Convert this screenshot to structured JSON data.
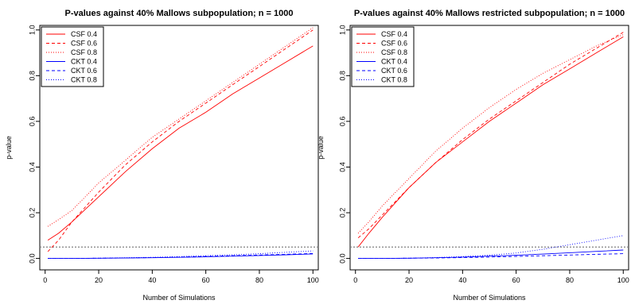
{
  "panels": [
    {
      "title": "P-values against 40% Mallows subpopulation; n = 1000",
      "chart_data": {
        "type": "line",
        "title": "P-values against 40% Mallows subpopulation; n = 1000",
        "xlabel": "Number of Simulations",
        "ylabel": "p-value",
        "xlim": [
          0,
          100
        ],
        "ylim": [
          -0.05,
          1.02
        ],
        "xticks": [
          0,
          20,
          40,
          60,
          80,
          100
        ],
        "yticks": [
          0.0,
          0.2,
          0.4,
          0.6,
          0.8,
          1.0
        ],
        "xtick_labels": [
          "0",
          "20",
          "40",
          "60",
          "80",
          "100"
        ],
        "ytick_labels": [
          "0.0",
          "0.2",
          "0.4",
          "0.6",
          "0.8",
          "1.0"
        ],
        "hline": 0.05,
        "legend_position": "top-left",
        "x": [
          1,
          5,
          10,
          20,
          30,
          40,
          50,
          60,
          70,
          80,
          90,
          100
        ],
        "series": [
          {
            "name": "CSF 0.4",
            "color": "#ff0000",
            "dash": "solid",
            "values": [
              0.08,
              0.11,
              0.16,
              0.27,
              0.38,
              0.48,
              0.57,
              0.64,
              0.72,
              0.79,
              0.86,
              0.93
            ]
          },
          {
            "name": "CSF 0.6",
            "color": "#ff0000",
            "dash": "dashed",
            "values": [
              0.03,
              0.08,
              0.16,
              0.29,
              0.41,
              0.51,
              0.6,
              0.68,
              0.76,
              0.84,
              0.92,
              1.0
            ]
          },
          {
            "name": "CSF 0.8",
            "color": "#ff0000",
            "dash": "dotted",
            "values": [
              0.14,
              0.17,
              0.21,
              0.33,
              0.43,
              0.53,
              0.61,
              0.69,
              0.77,
              0.85,
              0.93,
              1.01
            ]
          },
          {
            "name": "CKT 0.4",
            "color": "#0000ff",
            "dash": "solid",
            "values": [
              0.0,
              0.0,
              0.0,
              0.001,
              0.002,
              0.003,
              0.005,
              0.007,
              0.01,
              0.013,
              0.016,
              0.02
            ]
          },
          {
            "name": "CKT 0.6",
            "color": "#0000ff",
            "dash": "dashed",
            "values": [
              0.0,
              0.0,
              0.0,
              0.001,
              0.002,
              0.004,
              0.006,
              0.009,
              0.012,
              0.015,
              0.018,
              0.022
            ]
          },
          {
            "name": "CKT 0.8",
            "color": "#0000ff",
            "dash": "dotted",
            "values": [
              0.0,
              0.0,
              0.0,
              0.001,
              0.003,
              0.005,
              0.008,
              0.012,
              0.016,
              0.021,
              0.027,
              0.033
            ]
          }
        ]
      }
    },
    {
      "title": "P-values against 40% Mallows restricted subpopulation; n = 1000",
      "chart_data": {
        "type": "line",
        "title": "P-values against 40% Mallows restricted subpopulation; n = 1000",
        "xlabel": "Number of Simulations",
        "ylabel": "p-value",
        "xlim": [
          0,
          100
        ],
        "ylim": [
          -0.05,
          1.02
        ],
        "xticks": [
          0,
          20,
          40,
          60,
          80,
          100
        ],
        "yticks": [
          0.0,
          0.2,
          0.4,
          0.6,
          0.8,
          1.0
        ],
        "xtick_labels": [
          "0",
          "20",
          "40",
          "60",
          "80",
          "100"
        ],
        "ytick_labels": [
          "0.0",
          "0.2",
          "0.4",
          "0.6",
          "0.8",
          "1.0"
        ],
        "hline": 0.05,
        "legend_position": "top-left",
        "x": [
          1,
          5,
          10,
          20,
          30,
          40,
          50,
          60,
          70,
          80,
          90,
          100
        ],
        "series": [
          {
            "name": "CSF 0.4",
            "color": "#ff0000",
            "dash": "solid",
            "values": [
              0.05,
              0.11,
              0.18,
              0.31,
              0.42,
              0.51,
              0.6,
              0.68,
              0.76,
              0.83,
              0.9,
              0.97
            ]
          },
          {
            "name": "CSF 0.6",
            "color": "#ff0000",
            "dash": "dashed",
            "values": [
              0.09,
              0.13,
              0.19,
              0.31,
              0.42,
              0.52,
              0.61,
              0.69,
              0.77,
              0.85,
              0.92,
              0.99
            ]
          },
          {
            "name": "CSF 0.8",
            "color": "#ff0000",
            "dash": "dotted",
            "values": [
              0.11,
              0.16,
              0.23,
              0.35,
              0.47,
              0.57,
              0.66,
              0.74,
              0.81,
              0.87,
              0.93,
              0.98
            ]
          },
          {
            "name": "CKT 0.4",
            "color": "#0000ff",
            "dash": "solid",
            "values": [
              0.0,
              0.0,
              0.0,
              0.001,
              0.003,
              0.006,
              0.01,
              0.014,
              0.019,
              0.025,
              0.031,
              0.037
            ]
          },
          {
            "name": "CKT 0.6",
            "color": "#0000ff",
            "dash": "dashed",
            "values": [
              0.0,
              0.0,
              0.0,
              0.001,
              0.002,
              0.004,
              0.006,
              0.009,
              0.012,
              0.015,
              0.018,
              0.021
            ]
          },
          {
            "name": "CKT 0.8",
            "color": "#0000ff",
            "dash": "dotted",
            "values": [
              0.0,
              0.0,
              0.0,
              0.001,
              0.004,
              0.008,
              0.014,
              0.024,
              0.04,
              0.06,
              0.08,
              0.1
            ]
          }
        ]
      }
    }
  ]
}
